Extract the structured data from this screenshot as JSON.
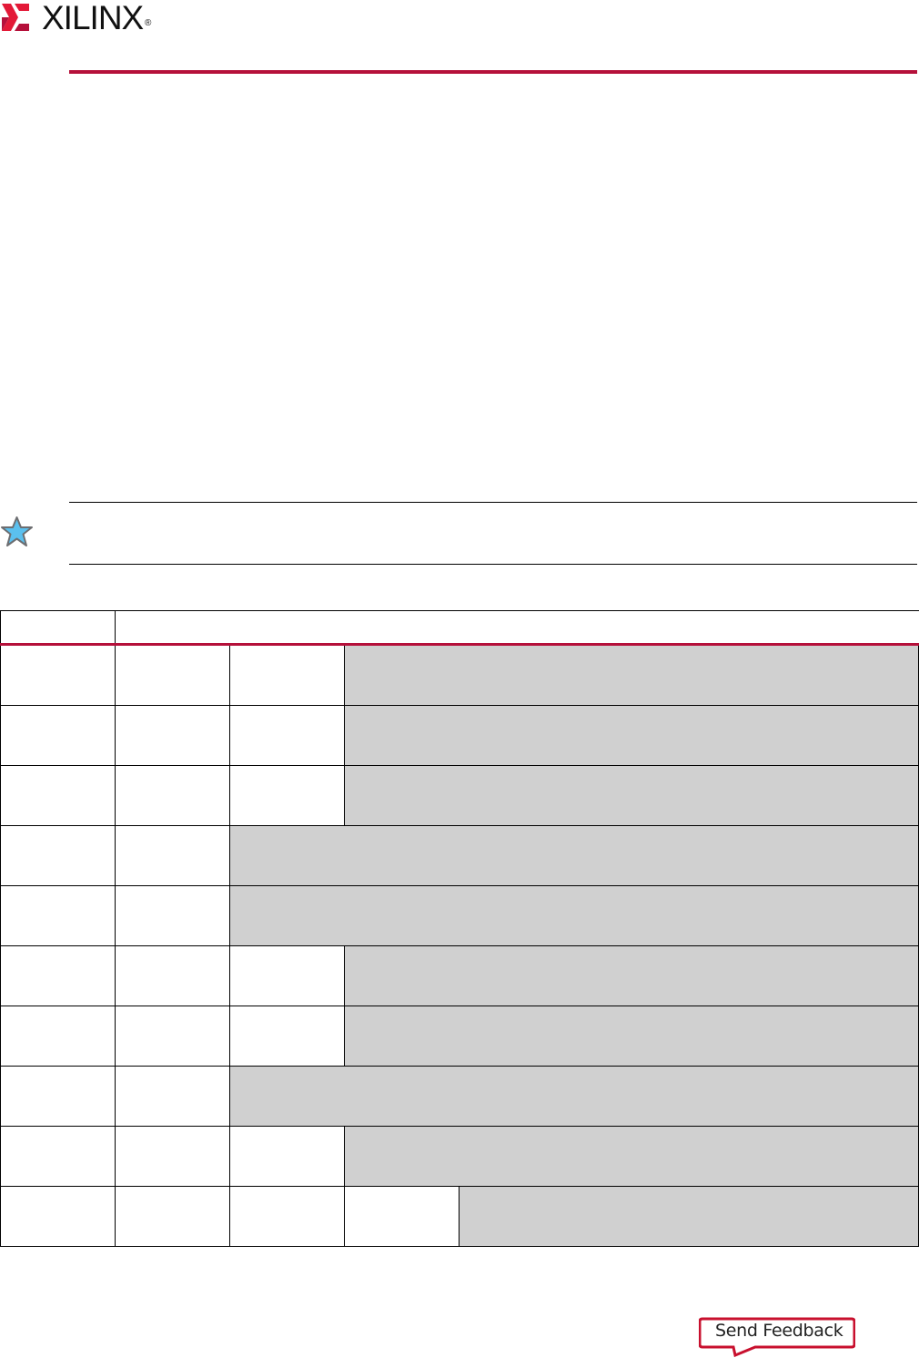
{
  "header": {
    "logo_text": "XILINX",
    "logo_mark": "®",
    "brand_color": "#b5103a"
  },
  "note": {
    "icon": "star-icon",
    "icon_fill": "#5bc0ee"
  },
  "table": {
    "header_row": [
      "",
      ""
    ],
    "rows": 10,
    "shaded_color": "#d0d0d0"
  },
  "footer": {
    "feedback_label": "Send Feedback",
    "feedback_color": "#c8102e"
  }
}
